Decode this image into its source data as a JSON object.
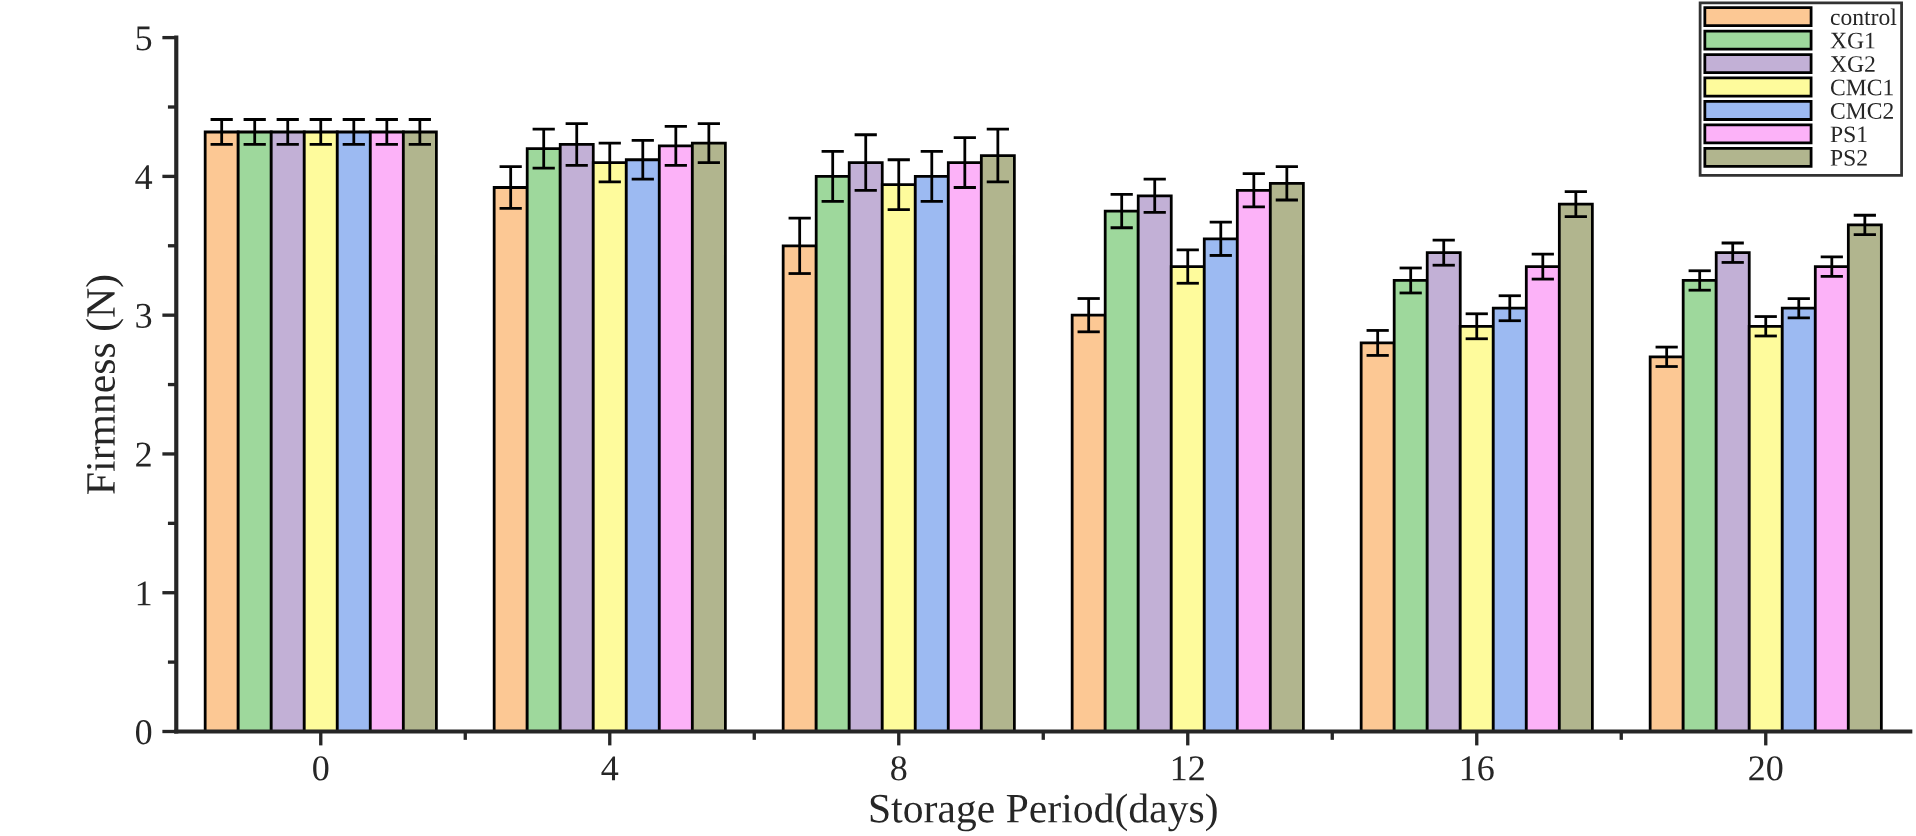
{
  "chart_data": {
    "type": "bar",
    "xlabel": "Storage Period(days)",
    "ylabel": "Firmness (N)",
    "categories": [
      "0",
      "4",
      "8",
      "12",
      "16",
      "20"
    ],
    "ylim": [
      0,
      5
    ],
    "yticks": [
      0,
      1,
      2,
      3,
      4,
      5
    ],
    "legend": "top right",
    "grid": false,
    "series": [
      {
        "name": "control",
        "color": "#fcc894",
        "values": [
          4.32,
          3.92,
          3.5,
          3.0,
          2.8,
          2.7
        ],
        "errors": [
          0.09,
          0.15,
          0.2,
          0.12,
          0.09,
          0.07
        ]
      },
      {
        "name": "XG1",
        "color": "#9ed89c",
        "values": [
          4.32,
          4.2,
          4.0,
          3.75,
          3.25,
          3.25
        ],
        "errors": [
          0.09,
          0.14,
          0.18,
          0.12,
          0.09,
          0.07
        ]
      },
      {
        "name": "XG2",
        "color": "#c2b0d6",
        "values": [
          4.32,
          4.23,
          4.1,
          3.86,
          3.45,
          3.45
        ],
        "errors": [
          0.09,
          0.15,
          0.2,
          0.12,
          0.09,
          0.07
        ]
      },
      {
        "name": "CMC1",
        "color": "#fefb9c",
        "values": [
          4.32,
          4.1,
          3.94,
          3.35,
          2.92,
          2.92
        ],
        "errors": [
          0.09,
          0.14,
          0.18,
          0.12,
          0.09,
          0.07
        ]
      },
      {
        "name": "CMC2",
        "color": "#9cbaf2",
        "values": [
          4.32,
          4.12,
          4.0,
          3.55,
          3.05,
          3.05
        ],
        "errors": [
          0.09,
          0.14,
          0.18,
          0.12,
          0.09,
          0.07
        ]
      },
      {
        "name": "PS1",
        "color": "#fcb2f8",
        "values": [
          4.32,
          4.22,
          4.1,
          3.9,
          3.35,
          3.35
        ],
        "errors": [
          0.09,
          0.14,
          0.18,
          0.12,
          0.09,
          0.07
        ]
      },
      {
        "name": "PS2",
        "color": "#b1b58e",
        "values": [
          4.32,
          4.24,
          4.15,
          3.95,
          3.8,
          3.65
        ],
        "errors": [
          0.09,
          0.14,
          0.19,
          0.12,
          0.09,
          0.07
        ]
      }
    ]
  }
}
